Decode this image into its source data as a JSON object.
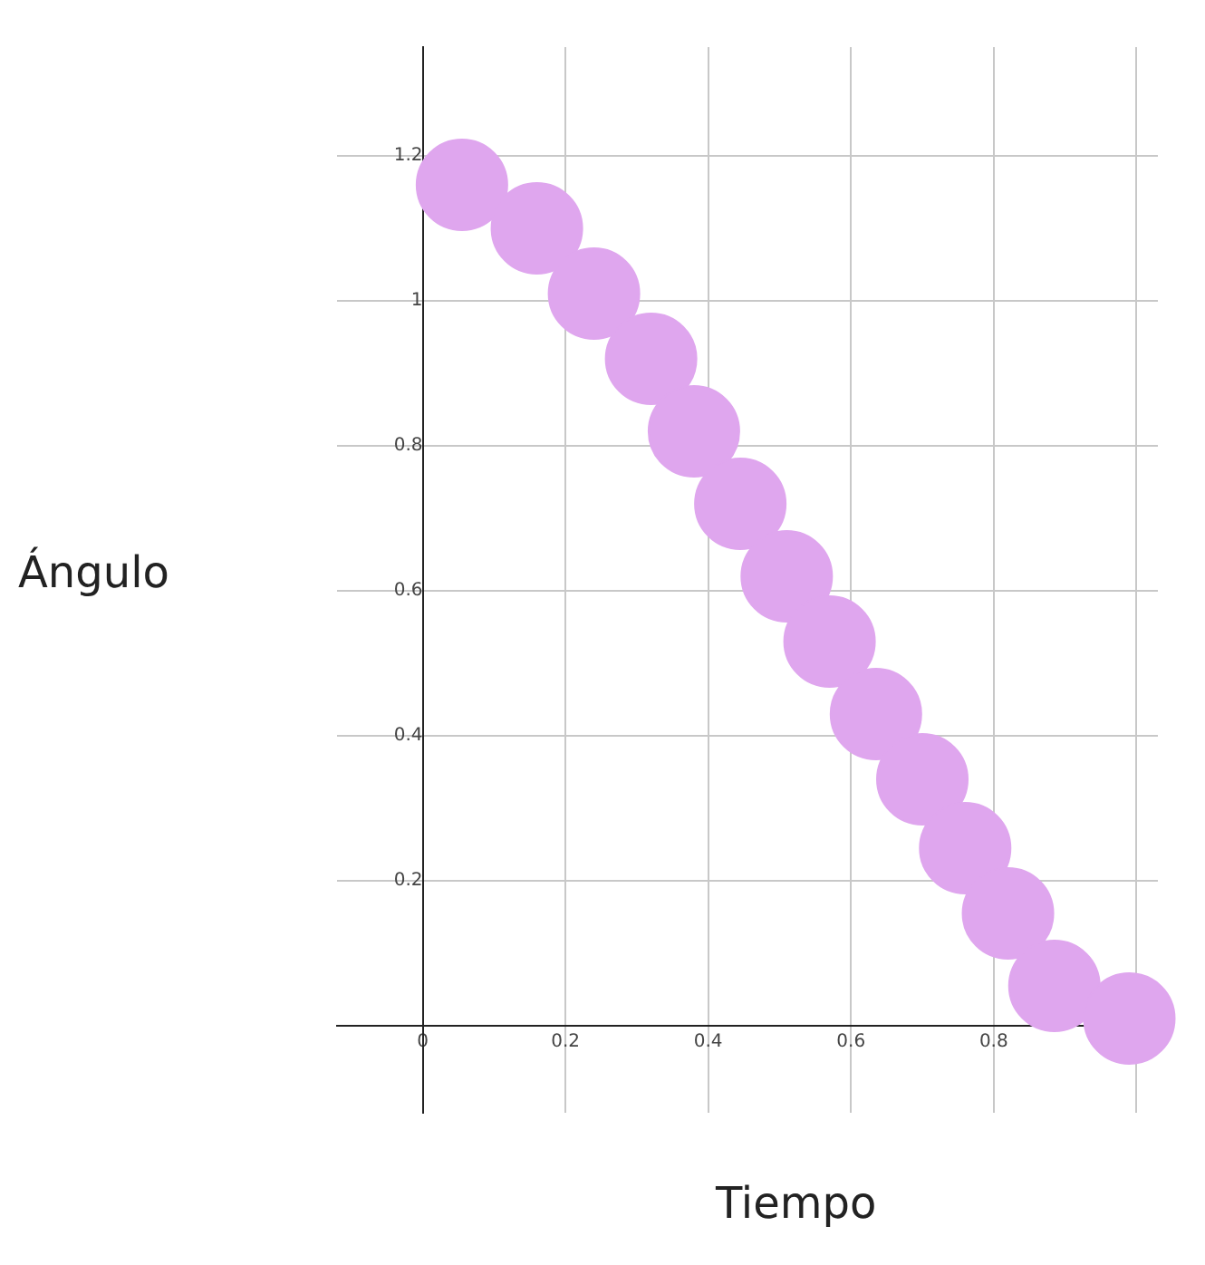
{
  "chart_data": {
    "type": "scatter",
    "xlabel": "Tiempo",
    "ylabel": "Ángulo",
    "x": [
      0.055,
      0.16,
      0.24,
      0.32,
      0.38,
      0.445,
      0.51,
      0.57,
      0.635,
      0.7,
      0.76,
      0.82,
      0.885,
      0.99
    ],
    "series": [
      {
        "color": "#dfa6ee",
        "values": [
          1.16,
          1.1,
          1.01,
          0.92,
          0.82,
          0.72,
          0.62,
          0.53,
          0.43,
          0.34,
          0.245,
          0.155,
          0.055,
          0.01
        ]
      }
    ],
    "xlim": [
      -0.12,
      1.03
    ],
    "ylim": [
      -0.12,
      1.35
    ],
    "xticks": [
      0,
      0.2,
      0.4,
      0.6,
      0.8,
      {
        "value": 1,
        "label": null
      }
    ],
    "yticks": [
      0.2,
      0.4,
      0.6,
      0.8,
      1,
      1.2
    ],
    "grid": true,
    "marker": "circle",
    "legend": false
  }
}
